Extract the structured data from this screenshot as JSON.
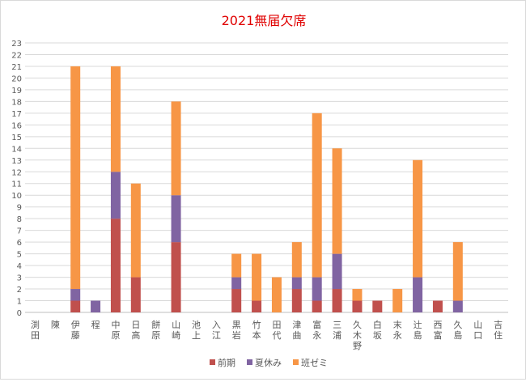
{
  "chart_data": {
    "type": "bar",
    "stacked": true,
    "title": "2021無届欠席",
    "title_color": "#e00000",
    "categories": [
      "渕田",
      "陳",
      "伊藤",
      "程",
      "中原",
      "日高",
      "餅原",
      "山崎",
      "池上",
      "入江",
      "黒岩",
      "竹本",
      "田代",
      "津曲",
      "富永",
      "三浦",
      "久木野",
      "白坂",
      "末永",
      "辻島",
      "西富",
      "久島",
      "山口",
      "吉住"
    ],
    "series": [
      {
        "name": "前期",
        "color": "#c0504d",
        "values": [
          0,
          0,
          1,
          0,
          8,
          3,
          0,
          6,
          0,
          0,
          2,
          1,
          0,
          2,
          1,
          2,
          1,
          1,
          0,
          0,
          1,
          0,
          0,
          0
        ]
      },
      {
        "name": "夏休み",
        "color": "#8064a2",
        "values": [
          0,
          0,
          1,
          1,
          4,
          0,
          0,
          4,
          0,
          0,
          1,
          0,
          0,
          1,
          2,
          3,
          0,
          0,
          0,
          3,
          0,
          1,
          0,
          0
        ]
      },
      {
        "name": "班ゼミ",
        "color": "#f79646",
        "values": [
          0,
          0,
          19,
          0,
          9,
          8,
          0,
          8,
          0,
          0,
          2,
          4,
          3,
          3,
          14,
          9,
          1,
          0,
          2,
          10,
          0,
          5,
          0,
          0
        ]
      }
    ],
    "ylim": [
      0,
      23
    ],
    "ytick_step": 1,
    "grid": true,
    "legend_position": "bottom"
  }
}
